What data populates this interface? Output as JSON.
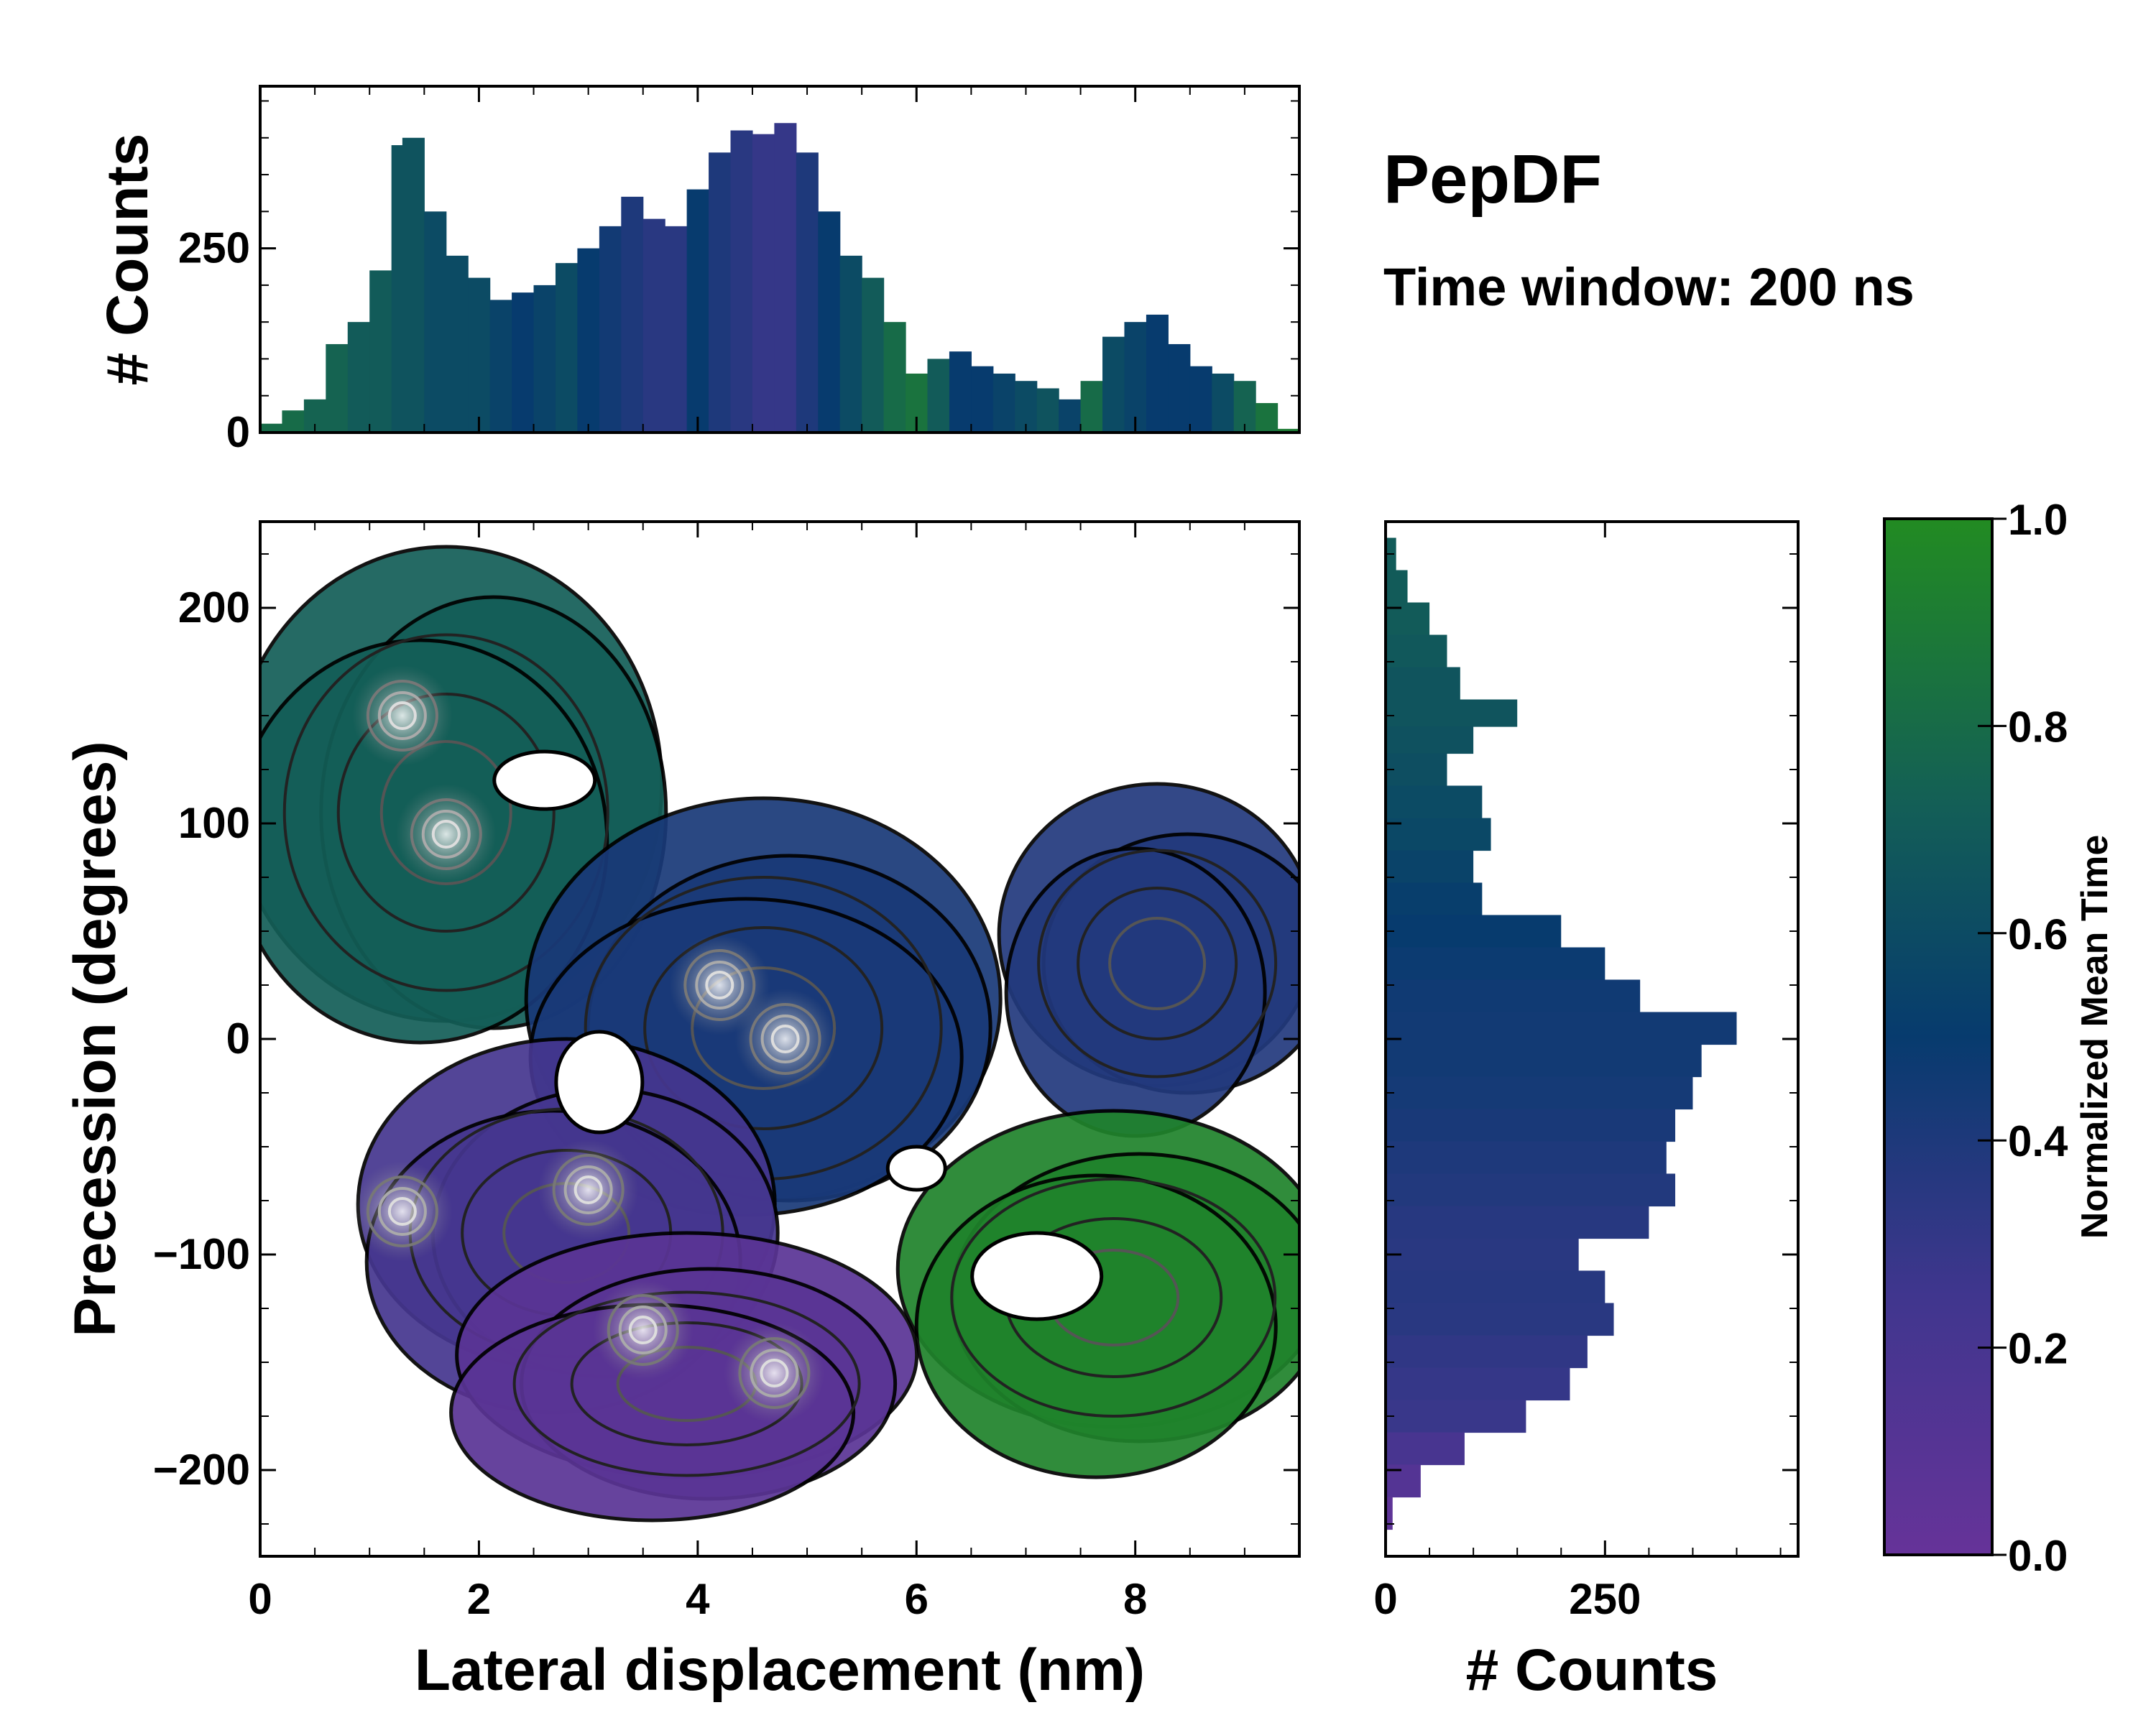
{
  "colors": {
    "low": "#663399",
    "mid": "#073b6e",
    "high": "#228b22",
    "frame": "#000000"
  },
  "chart_data": [
    {
      "id": "joint",
      "type": "heatmap",
      "title": "PepDF",
      "subtitle": "Time window: 200 ns",
      "xlabel": "Lateral displacement (nm)",
      "ylabel": "Precession (degrees)",
      "xlim": [
        0,
        9.5
      ],
      "ylim": [
        -240,
        240
      ],
      "xticks": [
        0,
        2,
        4,
        6,
        8
      ],
      "xtick_labels": [
        "0",
        "2",
        "4",
        "6",
        "8"
      ],
      "yticks": [
        -200,
        -100,
        0,
        100,
        200
      ],
      "ytick_labels": [
        "−200",
        "−100",
        "0",
        "100",
        "200"
      ],
      "color_label": "Normalized Mean Time",
      "regions": [
        {
          "name": "upper-left",
          "x": 1.7,
          "y": 105,
          "mean_time": 0.72
        },
        {
          "name": "center",
          "x": 4.6,
          "y": 5,
          "mean_time": 0.42
        },
        {
          "name": "right",
          "x": 8.2,
          "y": 35,
          "mean_time": 0.38
        },
        {
          "name": "lower-left",
          "x": 2.8,
          "y": -90,
          "mean_time": 0.22
        },
        {
          "name": "bottom",
          "x": 3.9,
          "y": -160,
          "mean_time": 0.08
        },
        {
          "name": "lower-right",
          "x": 7.8,
          "y": -120,
          "mean_time": 0.95
        }
      ],
      "density_peaks": [
        {
          "x": 1.3,
          "y": 150
        },
        {
          "x": 1.7,
          "y": 95
        },
        {
          "x": 4.2,
          "y": 25
        },
        {
          "x": 4.8,
          "y": 0
        },
        {
          "x": 3.0,
          "y": -70
        },
        {
          "x": 1.3,
          "y": -80
        },
        {
          "x": 3.5,
          "y": -135
        },
        {
          "x": 4.7,
          "y": -155
        }
      ]
    },
    {
      "id": "top-marginal",
      "type": "bar",
      "xlabel": "",
      "ylabel": "# Counts",
      "xlim": [
        0,
        9.5
      ],
      "ylim": [
        0,
        470
      ],
      "yticks": [
        0,
        250
      ],
      "ytick_labels": [
        "0",
        "250"
      ],
      "x": [
        0.1,
        0.3,
        0.5,
        0.7,
        0.9,
        1.1,
        1.3,
        1.4,
        1.6,
        1.8,
        2.0,
        2.2,
        2.4,
        2.6,
        2.8,
        3.0,
        3.2,
        3.4,
        3.6,
        3.8,
        4.0,
        4.2,
        4.4,
        4.6,
        4.8,
        5.0,
        5.2,
        5.4,
        5.6,
        5.8,
        6.0,
        6.2,
        6.4,
        6.6,
        6.8,
        7.0,
        7.2,
        7.4,
        7.6,
        7.8,
        8.0,
        8.2,
        8.4,
        8.6,
        8.8,
        9.0,
        9.2,
        9.4
      ],
      "values": [
        12,
        30,
        45,
        120,
        150,
        220,
        390,
        400,
        300,
        240,
        210,
        180,
        190,
        200,
        230,
        250,
        280,
        320,
        290,
        280,
        330,
        380,
        410,
        405,
        420,
        380,
        300,
        240,
        210,
        150,
        80,
        100,
        110,
        90,
        80,
        70,
        60,
        45,
        70,
        130,
        150,
        160,
        120,
        90,
        80,
        70,
        40,
        5
      ],
      "mean_time": [
        0.8,
        0.8,
        0.75,
        0.75,
        0.7,
        0.7,
        0.65,
        0.65,
        0.6,
        0.6,
        0.6,
        0.55,
        0.5,
        0.55,
        0.6,
        0.5,
        0.45,
        0.4,
        0.35,
        0.35,
        0.5,
        0.4,
        0.35,
        0.3,
        0.3,
        0.4,
        0.5,
        0.6,
        0.7,
        0.8,
        0.85,
        0.7,
        0.5,
        0.5,
        0.55,
        0.6,
        0.65,
        0.55,
        0.8,
        0.6,
        0.55,
        0.5,
        0.5,
        0.5,
        0.6,
        0.75,
        0.85,
        0.9
      ]
    },
    {
      "id": "right-marginal",
      "type": "bar",
      "orientation": "horizontal",
      "xlabel": "# Counts",
      "xlim": [
        0,
        470
      ],
      "ylim": [
        -240,
        240
      ],
      "xticks": [
        0,
        250
      ],
      "xtick_labels": [
        "0",
        "250"
      ],
      "y": [
        225,
        210,
        195,
        180,
        165,
        150,
        140,
        125,
        110,
        95,
        80,
        65,
        50,
        35,
        20,
        5,
        -10,
        -25,
        -40,
        -55,
        -70,
        -85,
        -100,
        -115,
        -130,
        -145,
        -160,
        -175,
        -190,
        -205,
        -220
      ],
      "values": [
        12,
        25,
        50,
        70,
        85,
        150,
        100,
        70,
        110,
        120,
        100,
        110,
        200,
        250,
        290,
        400,
        360,
        350,
        330,
        320,
        330,
        300,
        220,
        250,
        260,
        230,
        210,
        160,
        90,
        40,
        8
      ],
      "mean_time": [
        0.7,
        0.7,
        0.7,
        0.68,
        0.66,
        0.66,
        0.64,
        0.62,
        0.6,
        0.58,
        0.55,
        0.52,
        0.5,
        0.48,
        0.46,
        0.45,
        0.45,
        0.44,
        0.42,
        0.4,
        0.38,
        0.36,
        0.35,
        0.36,
        0.35,
        0.32,
        0.3,
        0.28,
        0.2,
        0.12,
        0.05
      ]
    },
    {
      "id": "colorbar",
      "type": "colorbar",
      "label": "Normalized Mean Time",
      "ylim": [
        0,
        1
      ],
      "ticks": [
        0,
        0.2,
        0.4,
        0.6,
        0.8,
        1.0
      ],
      "tick_labels": [
        "0.0",
        "0.2",
        "0.4",
        "0.6",
        "0.8",
        "1.0"
      ]
    }
  ]
}
